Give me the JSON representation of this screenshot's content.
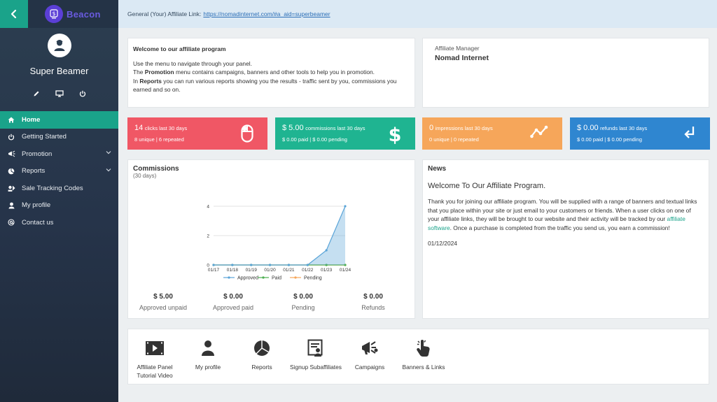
{
  "brand": {
    "name": "Beacon"
  },
  "user": {
    "name": "Super Beamer"
  },
  "nav": [
    {
      "label": "Home",
      "icon": "home-icon"
    },
    {
      "label": "Getting Started",
      "icon": "power-icon"
    },
    {
      "label": "Promotion",
      "icon": "megaphone-icon"
    },
    {
      "label": "Reports",
      "icon": "pie-chart-icon"
    },
    {
      "label": "Sale Tracking Codes",
      "icon": "code-icon"
    },
    {
      "label": "My profile",
      "icon": "user-icon"
    },
    {
      "label": "Contact us",
      "icon": "at-icon"
    }
  ],
  "topbar": {
    "label": "General (Your) Affiliate Link:",
    "link": "https://nomadinternet.com/#a_aid=superbeamer"
  },
  "welcome": {
    "title": "Welcome to our affiliate program",
    "line1": "Use the menu to navigate through your panel.",
    "line2_pre": "The ",
    "line2_bold": "Promotion",
    "line2_post": " menu contains campaigns, banners and other tools to help you in promotion.",
    "line3_pre": "In ",
    "line3_bold": "Reports",
    "line3_post": " you can run various reports showing you the results - traffic sent by you, commissions you earned and so on."
  },
  "manager": {
    "label": "Affiliate Manager",
    "name": "Nomad Internet"
  },
  "stats": {
    "clicks": {
      "value": "14",
      "label": "clicks last 30 days",
      "sub": "8 unique | 6 repeated",
      "color": "#f05765"
    },
    "commissions": {
      "value": "$ 5.00",
      "label": "commissions last 30 days",
      "sub": "$ 0.00 paid | $ 0.00 pending",
      "color": "#1fb491"
    },
    "impressions": {
      "value": "0",
      "label": "impressions last 30 days",
      "sub": "0 unique | 0 repeated",
      "color": "#f6a65a"
    },
    "refunds": {
      "value": "$ 0.00",
      "label": "refunds last 30 days",
      "sub": "$ 0.00 paid | $ 0.00 pending",
      "color": "#2f86d0"
    }
  },
  "commissions": {
    "title": "Commissions",
    "subtitle": "(30 days)",
    "totals": [
      {
        "value": "$ 5.00",
        "label": "Approved unpaid"
      },
      {
        "value": "$ 0.00",
        "label": "Approved paid"
      },
      {
        "value": "$ 0.00",
        "label": "Pending"
      },
      {
        "value": "$ 0.00",
        "label": "Refunds"
      }
    ]
  },
  "chart_data": {
    "type": "area",
    "categories": [
      "01/17",
      "01/18",
      "01/19",
      "01/20",
      "01/21",
      "01/22",
      "01/23",
      "01/24"
    ],
    "yticks": [
      0,
      2,
      4
    ],
    "ylim": [
      0,
      4
    ],
    "series": [
      {
        "name": "Approved",
        "color": "#5aa4d8",
        "values": [
          0,
          0,
          0,
          0,
          0,
          0,
          1,
          4
        ]
      },
      {
        "name": "Paid",
        "color": "#4caf50",
        "values": [
          0,
          0,
          0,
          0,
          0,
          0,
          0,
          0
        ]
      },
      {
        "name": "Pending",
        "color": "#f6a65a",
        "values": [
          0,
          0,
          0,
          0,
          0,
          0,
          0,
          0
        ]
      }
    ],
    "legend": "bottom",
    "grid": true
  },
  "news": {
    "title": "News",
    "headline": "Welcome To Our Affiliate Program.",
    "body": "Thank you for joining our affiliate program. You will be supplied with a range of banners and textual links that you place within your site or just email to your customers or friends. When a user clicks on one of your affiliate links, they will be brought to our website and their activity will be tracked by our ",
    "link": "affiliate software",
    "body_end": ". Once a purchase is completed from the traffic you send us, you earn a commission!",
    "date": "01/12/2024"
  },
  "shortcuts": [
    {
      "label": "Affiliate Panel Tutorial Video",
      "icon": "video-icon"
    },
    {
      "label": "My profile",
      "icon": "user-icon"
    },
    {
      "label": "Reports",
      "icon": "pie-chart-icon"
    },
    {
      "label": "Signup Subaffiliates",
      "icon": "signup-form-icon"
    },
    {
      "label": "Campaigns",
      "icon": "megaphone-icon"
    },
    {
      "label": "Banners & Links",
      "icon": "hand-pointer-icon"
    }
  ]
}
